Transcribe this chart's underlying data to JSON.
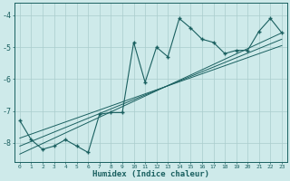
{
  "xlabel": "Humidex (Indice chaleur)",
  "bg_color": "#ceeaea",
  "grid_color": "#aacccc",
  "line_color": "#1a6060",
  "xlim": [
    -0.5,
    23.5
  ],
  "ylim": [
    -8.6,
    -3.6
  ],
  "yticks": [
    -8,
    -7,
    -6,
    -5,
    -4
  ],
  "xticks": [
    0,
    1,
    2,
    3,
    4,
    5,
    6,
    7,
    8,
    9,
    10,
    11,
    12,
    13,
    14,
    15,
    16,
    17,
    18,
    19,
    20,
    21,
    22,
    23
  ],
  "line1_x": [
    0,
    1,
    2,
    3,
    4,
    5,
    6,
    7,
    8,
    9,
    10,
    11,
    12,
    13,
    14,
    15,
    16,
    17,
    18,
    19,
    20,
    21,
    22,
    23
  ],
  "line1_y": [
    -7.3,
    -7.9,
    -8.2,
    -8.1,
    -7.9,
    -8.1,
    -8.3,
    -7.1,
    -7.05,
    -7.05,
    -4.85,
    -6.1,
    -5.0,
    -5.3,
    -4.1,
    -4.4,
    -4.75,
    -4.85,
    -5.2,
    -5.1,
    -5.1,
    -4.5,
    -4.1,
    -4.55
  ],
  "line2_x": [
    0,
    23
  ],
  "line2_y": [
    -8.35,
    -4.55
  ],
  "line3_x": [
    0,
    23
  ],
  "line3_y": [
    -8.1,
    -4.75
  ],
  "line4_x": [
    0,
    23
  ],
  "line4_y": [
    -7.85,
    -4.95
  ]
}
